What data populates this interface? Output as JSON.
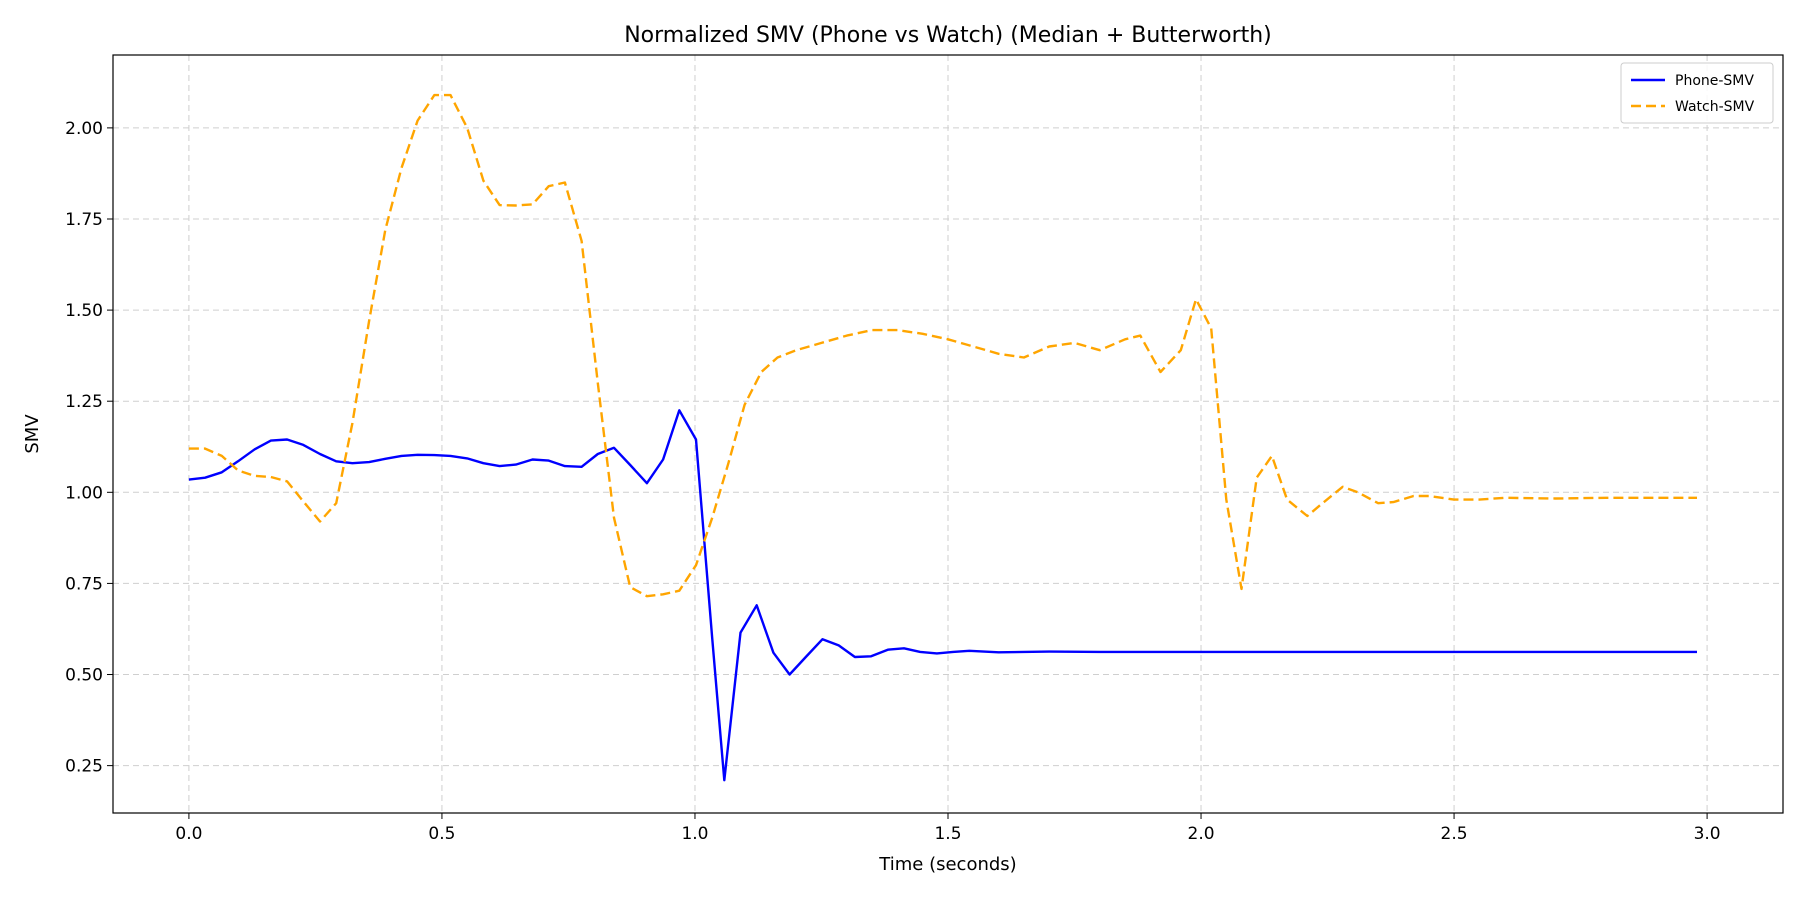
{
  "chart_data": {
    "type": "line",
    "title": "Normalized SMV (Phone vs Watch) (Median + Butterworth)",
    "xlabel": "Time (seconds)",
    "ylabel": "SMV",
    "xlim": [
      -0.15,
      3.15
    ],
    "ylim": [
      0.12,
      2.2
    ],
    "xticks": [
      0.0,
      0.5,
      1.0,
      1.5,
      2.0,
      2.5,
      3.0
    ],
    "xtick_labels": [
      "0.0",
      "0.5",
      "1.0",
      "1.5",
      "2.0",
      "2.5",
      "3.0"
    ],
    "yticks": [
      0.25,
      0.5,
      0.75,
      1.0,
      1.25,
      1.5,
      1.75,
      2.0
    ],
    "ytick_labels": [
      "0.25",
      "0.50",
      "0.75",
      "1.00",
      "1.25",
      "1.50",
      "1.75",
      "2.00"
    ],
    "grid": true,
    "legend_position": "top-right",
    "series": [
      {
        "name": "Phone-SMV",
        "color": "#0000ff",
        "style": "solid",
        "x": [
          0.0,
          0.032,
          0.065,
          0.097,
          0.13,
          0.162,
          0.194,
          0.226,
          0.259,
          0.291,
          0.323,
          0.356,
          0.388,
          0.42,
          0.452,
          0.485,
          0.517,
          0.55,
          0.582,
          0.614,
          0.646,
          0.679,
          0.711,
          0.743,
          0.776,
          0.808,
          0.84,
          0.872,
          0.905,
          0.937,
          0.969,
          1.002,
          1.034,
          1.058,
          1.09,
          1.122,
          1.155,
          1.187,
          1.219,
          1.252,
          1.284,
          1.316,
          1.348,
          1.381,
          1.413,
          1.445,
          1.478,
          1.51,
          1.542,
          1.6,
          1.7,
          1.8,
          1.9,
          2.0,
          2.2,
          2.4,
          2.6,
          2.8,
          2.98
        ],
        "y": [
          1.035,
          1.04,
          1.055,
          1.085,
          1.118,
          1.142,
          1.145,
          1.13,
          1.105,
          1.085,
          1.08,
          1.083,
          1.092,
          1.1,
          1.103,
          1.102,
          1.1,
          1.093,
          1.08,
          1.072,
          1.076,
          1.09,
          1.087,
          1.072,
          1.07,
          1.105,
          1.122,
          1.075,
          1.025,
          1.09,
          1.225,
          1.145,
          0.6,
          0.21,
          0.615,
          0.69,
          0.56,
          0.5,
          0.548,
          0.597,
          0.58,
          0.548,
          0.55,
          0.568,
          0.572,
          0.562,
          0.558,
          0.562,
          0.565,
          0.561,
          0.563,
          0.562,
          0.562,
          0.562,
          0.562,
          0.562,
          0.562,
          0.562,
          0.562
        ]
      },
      {
        "name": "Watch-SMV",
        "color": "#ffa500",
        "style": "dashed",
        "x": [
          0.0,
          0.032,
          0.065,
          0.097,
          0.13,
          0.162,
          0.194,
          0.226,
          0.259,
          0.291,
          0.323,
          0.356,
          0.388,
          0.42,
          0.452,
          0.485,
          0.517,
          0.55,
          0.582,
          0.614,
          0.646,
          0.679,
          0.711,
          0.743,
          0.776,
          0.808,
          0.84,
          0.872,
          0.905,
          0.937,
          0.969,
          1.002,
          1.034,
          1.066,
          1.098,
          1.131,
          1.163,
          1.2,
          1.25,
          1.3,
          1.35,
          1.4,
          1.45,
          1.5,
          1.55,
          1.6,
          1.65,
          1.7,
          1.75,
          1.8,
          1.85,
          1.88,
          1.92,
          1.96,
          1.99,
          2.02,
          2.05,
          2.08,
          2.11,
          2.14,
          2.17,
          2.21,
          2.24,
          2.28,
          2.31,
          2.35,
          2.38,
          2.42,
          2.45,
          2.5,
          2.55,
          2.6,
          2.7,
          2.8,
          2.9,
          2.98
        ],
        "y": [
          1.12,
          1.12,
          1.1,
          1.06,
          1.045,
          1.042,
          1.03,
          0.975,
          0.92,
          0.97,
          1.19,
          1.47,
          1.72,
          1.89,
          2.02,
          2.09,
          2.09,
          2.0,
          1.855,
          1.788,
          1.787,
          1.79,
          1.84,
          1.85,
          1.69,
          1.3,
          0.93,
          0.74,
          0.715,
          0.72,
          0.73,
          0.8,
          0.93,
          1.08,
          1.24,
          1.33,
          1.37,
          1.39,
          1.41,
          1.43,
          1.445,
          1.445,
          1.435,
          1.42,
          1.4,
          1.38,
          1.37,
          1.4,
          1.41,
          1.39,
          1.42,
          1.43,
          1.33,
          1.39,
          1.53,
          1.45,
          0.98,
          0.735,
          1.04,
          1.1,
          0.98,
          0.935,
          0.97,
          1.015,
          1.0,
          0.97,
          0.973,
          0.99,
          0.99,
          0.98,
          0.98,
          0.985,
          0.983,
          0.985,
          0.985,
          0.985
        ]
      }
    ]
  }
}
